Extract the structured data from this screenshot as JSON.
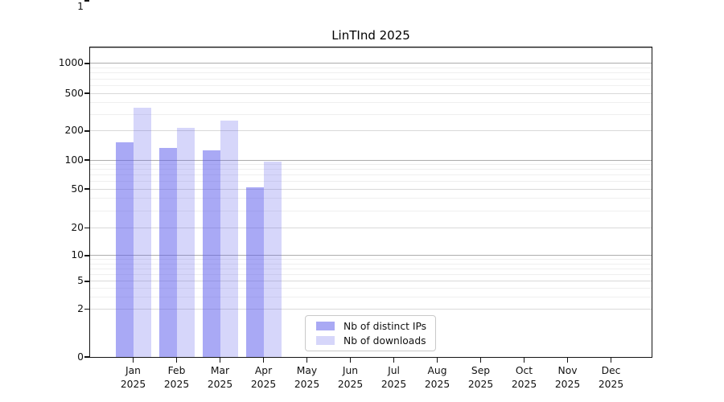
{
  "chart_data": {
    "type": "bar",
    "title": "LinTInd 2025",
    "categories": [
      "Jan",
      "Feb",
      "Mar",
      "Apr",
      "May",
      "Jun",
      "Jul",
      "Aug",
      "Sep",
      "Oct",
      "Nov",
      "Dec"
    ],
    "category_year": "2025",
    "series": [
      {
        "name": "Nb of distinct IPs",
        "values": [
          152,
          134,
          127,
          52,
          0,
          0,
          0,
          0,
          0,
          0,
          0,
          0
        ],
        "fill": "rgba(90,90,235,0.52)",
        "flat_color": "#a9a9f4"
      },
      {
        "name": "Nb of downloads",
        "values": [
          351,
          215,
          258,
          96,
          0,
          0,
          0,
          0,
          0,
          0,
          0,
          0
        ],
        "fill": "rgba(90,90,235,0.25)",
        "flat_color": "#d6d6fa"
      }
    ],
    "yticks": [
      0,
      1,
      2,
      5,
      10,
      20,
      50,
      100,
      200,
      500,
      1000
    ],
    "yscale": "log-like (0,1,2,5,10,20,50,100,200,500,1000)",
    "ylim": [
      0,
      1500
    ],
    "grid": true,
    "legend_position": "inside bottom center-left"
  },
  "colors": {
    "background": "#ffffff",
    "text": "#111111",
    "spine": "#141414",
    "grid_decade": "#adadad",
    "grid_labeled": "#d9d9d9",
    "grid_minor": "#efefef",
    "legend_border": "#c9c9c9"
  }
}
